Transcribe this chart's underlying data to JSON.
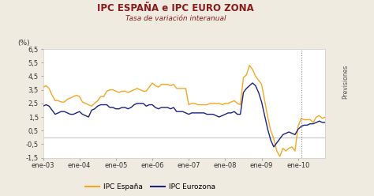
{
  "title": "IPC ESPAÑA e IPC EURO ZONA",
  "subtitle": "Tasa de variación interanual",
  "ylabel": "(%)",
  "ylim": [
    -1.5,
    6.5
  ],
  "yticks": [
    -1.5,
    -0.5,
    0.5,
    1.5,
    2.5,
    3.5,
    4.5,
    5.5,
    6.5
  ],
  "background_color": "#f0ebe0",
  "plot_bg_color": "#ffffff",
  "title_color": "#8b1a1a",
  "subtitle_color": "#8b1a1a",
  "vline_x_index": 85,
  "previsiones_label": "Previsiones",
  "legend_labels": [
    "IPC España",
    "IPC Eurozona"
  ],
  "line_colors": [
    "#f5a623",
    "#1a237e"
  ],
  "xtick_labels": [
    "ene-03",
    "ene-04",
    "ene-05",
    "ene-06",
    "ene-07",
    "ene-08",
    "ene-09",
    "ene-10"
  ],
  "spain": [
    3.7,
    3.8,
    3.6,
    3.1,
    2.7,
    2.7,
    2.6,
    2.6,
    2.8,
    2.9,
    3.0,
    3.1,
    3.0,
    2.6,
    2.5,
    2.4,
    2.3,
    2.5,
    2.7,
    3.0,
    3.0,
    3.4,
    3.5,
    3.5,
    3.4,
    3.3,
    3.4,
    3.4,
    3.3,
    3.4,
    3.5,
    3.6,
    3.5,
    3.4,
    3.4,
    3.7,
    4.0,
    3.8,
    3.7,
    3.9,
    3.9,
    3.9,
    3.8,
    3.9,
    3.6,
    3.6,
    3.6,
    3.6,
    2.4,
    2.5,
    2.5,
    2.4,
    2.4,
    2.4,
    2.4,
    2.5,
    2.5,
    2.5,
    2.5,
    2.4,
    2.5,
    2.5,
    2.6,
    2.7,
    2.5,
    2.4,
    4.4,
    4.6,
    5.3,
    5.0,
    4.5,
    4.2,
    3.9,
    2.7,
    1.5,
    0.5,
    -0.1,
    -1.0,
    -1.4,
    -0.8,
    -1.0,
    -0.8,
    -0.7,
    -1.0,
    0.8,
    1.4,
    1.3,
    1.3,
    1.3,
    1.1,
    1.5,
    1.6,
    1.4,
    1.5
  ],
  "euro": [
    2.3,
    2.4,
    2.3,
    2.0,
    1.7,
    1.8,
    1.9,
    1.9,
    1.8,
    1.7,
    1.7,
    1.8,
    1.9,
    1.7,
    1.6,
    1.5,
    2.0,
    2.1,
    2.3,
    2.4,
    2.4,
    2.4,
    2.2,
    2.2,
    2.1,
    2.1,
    2.2,
    2.2,
    2.1,
    2.2,
    2.4,
    2.5,
    2.5,
    2.5,
    2.3,
    2.4,
    2.4,
    2.2,
    2.1,
    2.2,
    2.2,
    2.2,
    2.1,
    2.2,
    1.9,
    1.9,
    1.9,
    1.8,
    1.7,
    1.8,
    1.8,
    1.8,
    1.8,
    1.8,
    1.7,
    1.7,
    1.7,
    1.6,
    1.5,
    1.6,
    1.7,
    1.8,
    1.8,
    1.9,
    1.7,
    1.7,
    3.3,
    3.6,
    3.8,
    4.0,
    3.8,
    3.3,
    2.6,
    1.6,
    0.6,
    -0.2,
    -0.7,
    -0.4,
    -0.1,
    0.2,
    0.3,
    0.4,
    0.3,
    0.2,
    0.6,
    0.8,
    0.9,
    0.9,
    1.0,
    1.0,
    1.1,
    1.2,
    1.1,
    1.1
  ]
}
